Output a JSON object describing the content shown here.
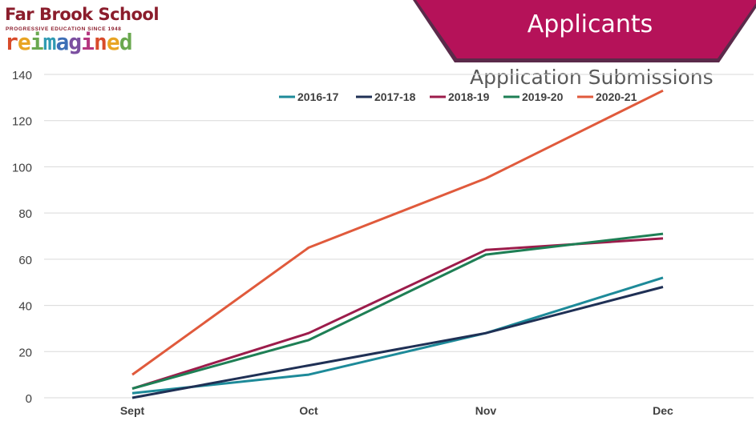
{
  "logo": {
    "name": "Far Brook School",
    "tagline": "PROGRESSIVE EDUCATION SINCE 1948",
    "word_letters": [
      {
        "ch": "r",
        "color": "#d84b2a"
      },
      {
        "ch": "e",
        "color": "#e8a423"
      },
      {
        "ch": "i",
        "color": "#6aa84f"
      },
      {
        "ch": "m",
        "color": "#2f9bb3"
      },
      {
        "ch": "a",
        "color": "#3d6fb6"
      },
      {
        "ch": "g",
        "color": "#7b4fa0"
      },
      {
        "ch": "i",
        "color": "#b5367f"
      },
      {
        "ch": "n",
        "color": "#d84b2a"
      },
      {
        "ch": "e",
        "color": "#e8a423"
      },
      {
        "ch": "d",
        "color": "#6aa84f"
      }
    ]
  },
  "banner": {
    "title": "Applicants",
    "color": "#b51259",
    "border_color": "#5a2a4a"
  },
  "chart_data": {
    "type": "line",
    "title": "Application Submissions",
    "categories": [
      "Sept",
      "Oct",
      "Nov",
      "Dec"
    ],
    "ylim": [
      0,
      140
    ],
    "yticks": [
      0,
      20,
      40,
      60,
      80,
      100,
      120,
      140
    ],
    "grid": true,
    "legend": "top",
    "series": [
      {
        "name": "2016-17",
        "color": "#1d8a99",
        "values": [
          2,
          10,
          28,
          52
        ]
      },
      {
        "name": "2017-18",
        "color": "#1f3055",
        "values": [
          0,
          14,
          28,
          48
        ]
      },
      {
        "name": "2018-19",
        "color": "#9c1c4b",
        "values": [
          4,
          28,
          64,
          69
        ]
      },
      {
        "name": "2019-20",
        "color": "#1e7f55",
        "values": [
          4,
          25,
          62,
          71
        ]
      },
      {
        "name": "2020-21",
        "color": "#e05a3c",
        "values": [
          10,
          65,
          95,
          133
        ]
      }
    ]
  }
}
